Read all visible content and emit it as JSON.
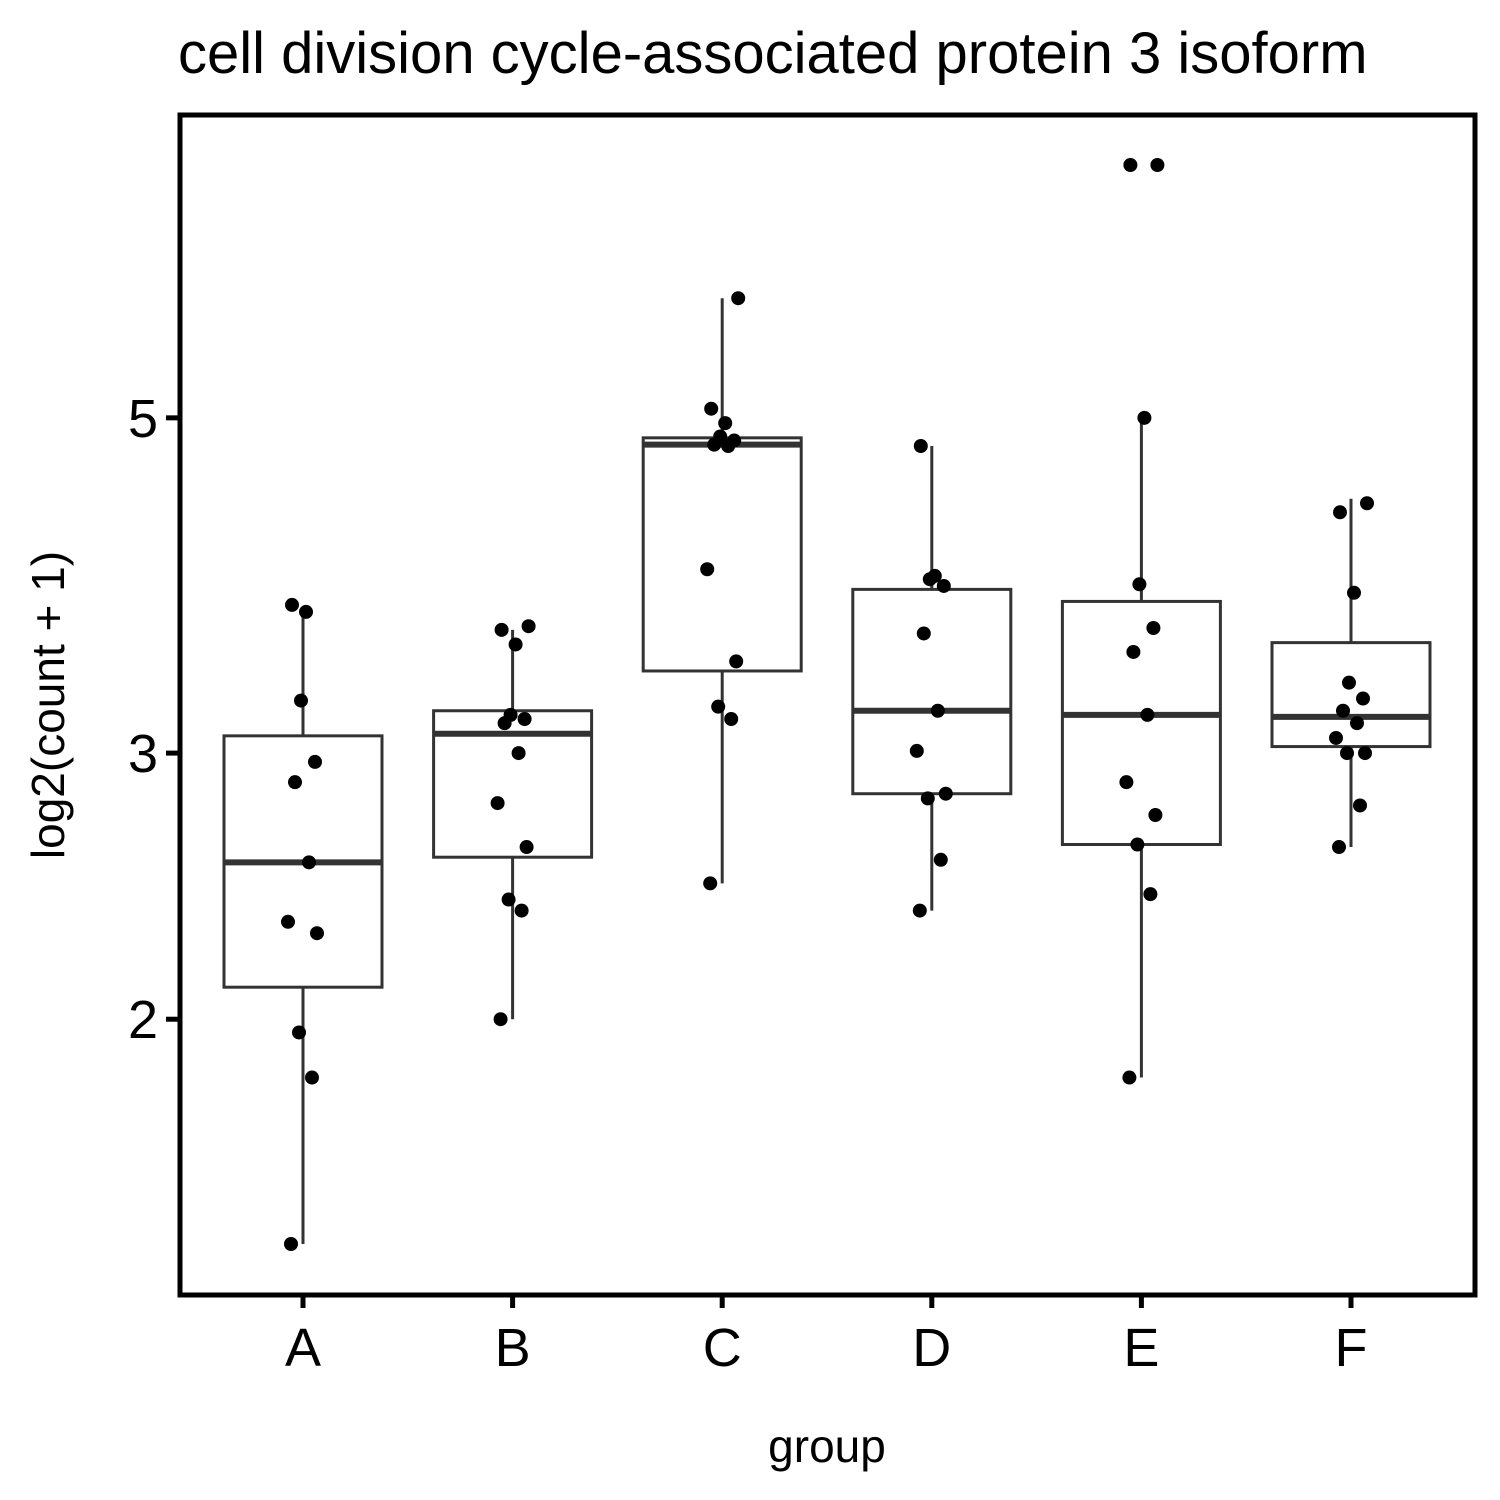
{
  "chart_data": {
    "type": "box",
    "title": "cell division cycle-associated protein 3 isoform",
    "xlabel": "group",
    "ylabel": "log2(count + 1)",
    "y_scale": "log2",
    "ylim": [
      1.42,
      7.35
    ],
    "yticks": [
      2,
      3,
      5
    ],
    "ytick_labels": [
      "2",
      "3",
      "5"
    ],
    "categories": [
      "A",
      "B",
      "C",
      "D",
      "E",
      "F"
    ],
    "boxes": [
      {
        "group": "A",
        "whisker_low": 1.42,
        "q1": 2.1,
        "median": 2.54,
        "q3": 3.08,
        "whisker_high": 3.75
      },
      {
        "group": "B",
        "whisker_low": 2.0,
        "q1": 2.56,
        "median": 3.09,
        "q3": 3.2,
        "whisker_high": 3.62
      },
      {
        "group": "C",
        "whisker_low": 2.46,
        "q1": 3.4,
        "median": 4.8,
        "q3": 4.85,
        "whisker_high": 6.0
      },
      {
        "group": "D",
        "whisker_low": 2.36,
        "q1": 2.82,
        "median": 3.2,
        "q3": 3.85,
        "whisker_high": 4.79
      },
      {
        "group": "E",
        "whisker_low": 1.83,
        "q1": 2.61,
        "median": 3.18,
        "q3": 3.78,
        "whisker_high": 5.0
      },
      {
        "group": "F",
        "whisker_low": 2.6,
        "q1": 3.03,
        "median": 3.17,
        "q3": 3.55,
        "whisker_high": 4.42
      }
    ],
    "points": [
      {
        "group": "A",
        "values": [
          1.42,
          1.83,
          1.96,
          2.28,
          2.32,
          2.54,
          2.87,
          2.96,
          3.25,
          3.72,
          3.76
        ]
      },
      {
        "group": "B",
        "values": [
          2.0,
          2.36,
          2.4,
          2.6,
          2.78,
          3.0,
          3.14,
          3.16,
          3.18,
          3.54,
          3.62,
          3.64
        ]
      },
      {
        "group": "C",
        "values": [
          2.46,
          3.16,
          3.22,
          3.45,
          3.97,
          4.79,
          4.8,
          4.83,
          4.86,
          4.96,
          5.07,
          6.0
        ]
      },
      {
        "group": "D",
        "values": [
          2.36,
          2.55,
          2.8,
          2.82,
          3.01,
          3.2,
          3.6,
          3.87,
          3.91,
          3.93,
          4.79
        ]
      },
      {
        "group": "E",
        "values": [
          1.83,
          2.42,
          2.61,
          2.73,
          2.87,
          3.18,
          3.5,
          3.63,
          3.88,
          5.0,
          7.35,
          7.35
        ]
      },
      {
        "group": "F",
        "values": [
          2.6,
          2.77,
          3.0,
          3.0,
          3.07,
          3.14,
          3.2,
          3.26,
          3.34,
          3.83,
          4.33,
          4.39
        ]
      }
    ],
    "grid": false,
    "legend": "none"
  }
}
